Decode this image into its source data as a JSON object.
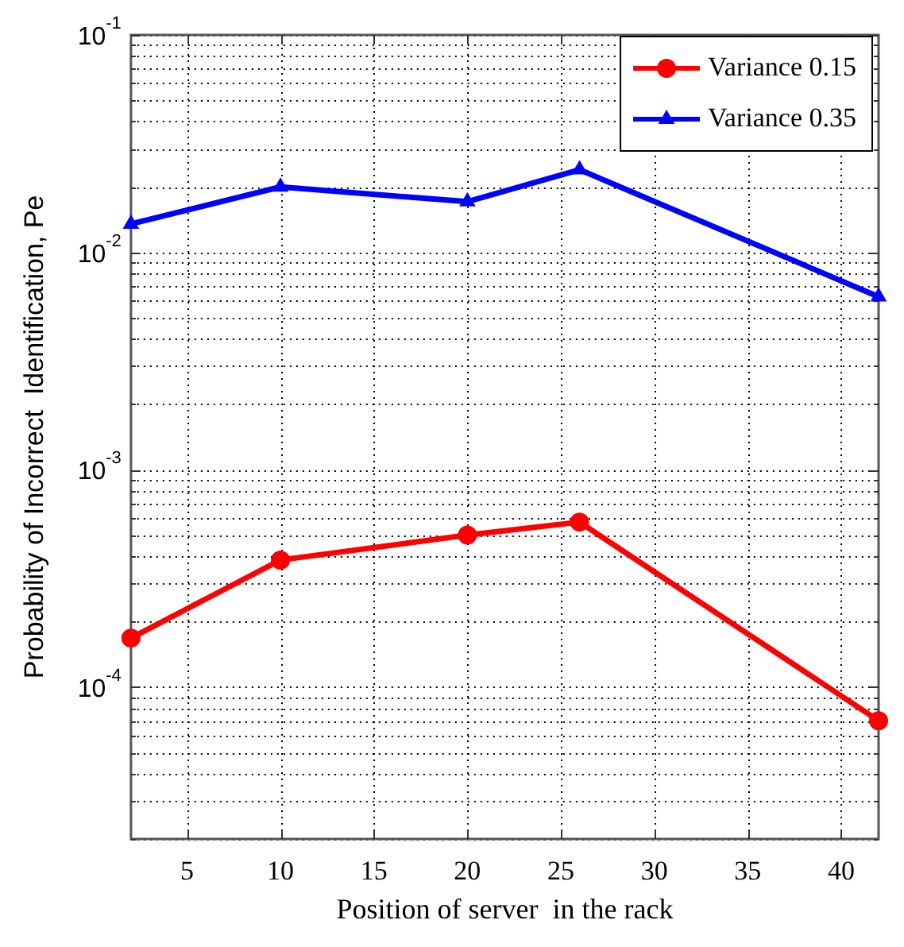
{
  "chart_data": {
    "type": "line",
    "xlabel": "Position of server  in the rack",
    "ylabel": "Probability of Incorrect  Identification, Pe",
    "x": [
      2,
      10,
      20,
      26,
      42
    ],
    "series": [
      {
        "name": "Variance 0.15",
        "color": "#ff0000",
        "marker": "circle",
        "values": [
          0.000168,
          0.000384,
          0.0005,
          0.000574,
          7e-05
        ]
      },
      {
        "name": "Variance 0.35",
        "color": "#0000ff",
        "marker": "triangle",
        "values": [
          0.0135,
          0.02,
          0.0171,
          0.024,
          0.00625
        ]
      }
    ],
    "log": "y",
    "xlim": [
      2,
      42
    ],
    "xticks": [
      5,
      10,
      15,
      20,
      25,
      30,
      35,
      40
    ],
    "ylim": [
      2e-05,
      0.1
    ],
    "yticks": [
      {
        "value": 2e-05,
        "label": null
      },
      {
        "value": 3e-05,
        "label": null
      },
      {
        "value": 4e-05,
        "label": null
      },
      {
        "value": 5e-05,
        "label": null
      },
      {
        "value": 6e-05,
        "label": null
      },
      {
        "value": 7e-05,
        "label": null
      },
      {
        "value": 8e-05,
        "label": null
      },
      {
        "value": 9e-05,
        "label": null
      },
      {
        "value": 0.0001,
        "label": "10$^{-4}$"
      },
      {
        "value": 0.0002,
        "label": null
      },
      {
        "value": 0.0003,
        "label": null
      },
      {
        "value": 0.0004,
        "label": null
      },
      {
        "value": 0.0005,
        "label": null
      },
      {
        "value": 0.0006,
        "label": null
      },
      {
        "value": 0.0007,
        "label": null
      },
      {
        "value": 0.0008,
        "label": null
      },
      {
        "value": 0.0009,
        "label": null
      },
      {
        "value": 0.001,
        "label": "10$^{-3}$"
      },
      {
        "value": 0.002,
        "label": null
      },
      {
        "value": 0.003,
        "label": null
      },
      {
        "value": 0.004,
        "label": null
      },
      {
        "value": 0.005,
        "label": null
      },
      {
        "value": 0.006,
        "label": null
      },
      {
        "value": 0.007,
        "label": null
      },
      {
        "value": 0.008,
        "label": null
      },
      {
        "value": 0.009,
        "label": null
      },
      {
        "value": 0.01,
        "label": "10$^{-2}$"
      },
      {
        "value": 0.02,
        "label": null
      },
      {
        "value": 0.03,
        "label": null
      },
      {
        "value": 0.04,
        "label": null
      },
      {
        "value": 0.05,
        "label": null
      },
      {
        "value": 0.06,
        "label": null
      },
      {
        "value": 0.07,
        "label": null
      },
      {
        "value": 0.08,
        "label": null
      },
      {
        "value": 0.09,
        "label": null
      },
      {
        "value": 0.1,
        "label": "10$^{-1}$"
      }
    ],
    "grid": true,
    "legend": "top right",
    "line_style": "solid"
  }
}
